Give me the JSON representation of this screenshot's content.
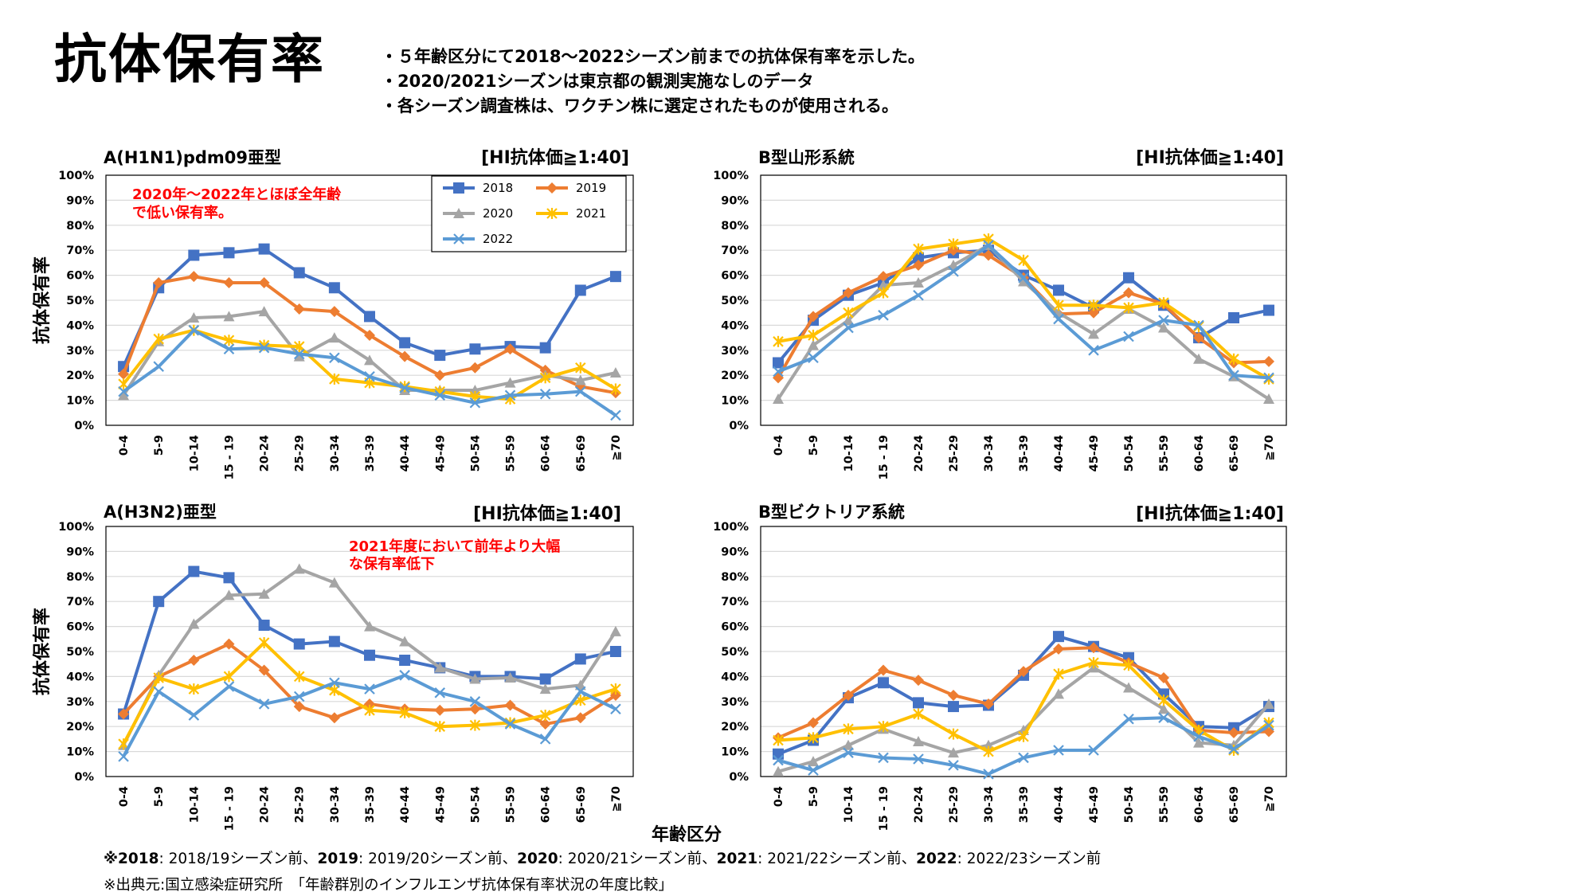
{
  "page": {
    "title": "抗体保有率",
    "notes": [
      "・５年齢区分にて2018～2022シーズン前までの抗体保有率を示した。",
      "・2020/2021シーズンは東京都の観測実施なしのデータ",
      "・各シーズン調査株は、ワクチン株に選定されたものが使用される。"
    ],
    "x_axis_title": "年齢区分",
    "footnote1": [
      {
        "b": "※2018",
        "t": ": 2018/19シーズン前、"
      },
      {
        "b": "2019",
        "t": ": 2019/20シーズン前、"
      },
      {
        "b": "2020",
        "t": ": 2020/21シーズン前、"
      },
      {
        "b": "2021",
        "t": ": 2021/22シーズン前、"
      },
      {
        "b": "2022",
        "t": ": 2022/23シーズン前"
      }
    ],
    "footnote2": "※出典元:国立感染症研究所　「年齢群別のインフルエンザ抗体保有率状況の年度比較」"
  },
  "colors": {
    "2018": "#4472C4",
    "2019": "#ED7D31",
    "2020": "#A5A5A5",
    "2021": "#FFC000",
    "2022": "#5B9BD5",
    "annotation": "#FF0000",
    "grid": "#D9D9D9"
  },
  "chart_data": [
    {
      "type": "line",
      "title": "A(H1N1)pdm09亜型",
      "criterion": "[HI抗体価≧1:40]",
      "ylabel": "抗体保有率",
      "ylim": [
        0,
        100
      ],
      "y_ticks": [
        "0%",
        "10%",
        "20%",
        "30%",
        "40%",
        "50%",
        "60%",
        "70%",
        "80%",
        "90%",
        "100%"
      ],
      "categories": [
        "0-4",
        "5-9",
        "10-14",
        "15 - 19",
        "20-24",
        "25-29",
        "30-34",
        "35-39",
        "40-44",
        "45-49",
        "50-54",
        "55-59",
        "60-64",
        "65-69",
        "≧70"
      ],
      "legend": "top-right",
      "annotation": [
        "2020年～2022年とほぼ全年齢",
        "で低い保有率。"
      ],
      "series": [
        {
          "name": "2018",
          "marker": "square",
          "values": [
            23.5,
            55,
            68,
            69,
            70.5,
            61,
            55,
            43.5,
            33,
            28,
            30.5,
            31.5,
            31,
            54,
            59.5
          ]
        },
        {
          "name": "2019",
          "marker": "diamond",
          "values": [
            20.5,
            57,
            59.5,
            57,
            57,
            46.5,
            45.5,
            36,
            27.5,
            20,
            23,
            30.5,
            22,
            15.5,
            13
          ]
        },
        {
          "name": "2020",
          "marker": "triangle",
          "values": [
            12,
            33.5,
            43,
            43.5,
            45.5,
            27.5,
            35,
            26,
            14,
            14,
            14,
            17,
            20,
            18,
            21
          ]
        },
        {
          "name": "2021",
          "marker": "star",
          "values": [
            16.5,
            34.5,
            38,
            34,
            32,
            31.5,
            18.5,
            17,
            15.5,
            13.5,
            11.5,
            10.5,
            19,
            23,
            14.5
          ]
        },
        {
          "name": "2022",
          "marker": "x",
          "values": [
            13.5,
            23.5,
            38,
            30.5,
            31,
            28.5,
            27,
            19.5,
            15,
            12,
            9,
            12,
            12.5,
            13.5,
            4
          ]
        }
      ]
    },
    {
      "type": "line",
      "title": "B型山形系統",
      "criterion": "[HI抗体価≧1:40]",
      "ylim": [
        0,
        100
      ],
      "y_ticks": [
        "0%",
        "10%",
        "20%",
        "30%",
        "40%",
        "50%",
        "60%",
        "70%",
        "80%",
        "90%",
        "100%"
      ],
      "categories": [
        "0-4",
        "5-9",
        "10-14",
        "15 - 19",
        "20-24",
        "25-29",
        "30-34",
        "35-39",
        "40-44",
        "45-49",
        "50-54",
        "55-59",
        "60-64",
        "65-69",
        "≧70"
      ],
      "series": [
        {
          "name": "2018",
          "marker": "square",
          "values": [
            25,
            42,
            52,
            57,
            67,
            69,
            70,
            60,
            54,
            47,
            59,
            48,
            35,
            43,
            46
          ]
        },
        {
          "name": "2019",
          "marker": "diamond",
          "values": [
            19,
            43.5,
            53,
            59.5,
            64,
            70,
            68,
            59,
            44.5,
            45,
            53,
            48.5,
            35,
            25,
            25.5
          ]
        },
        {
          "name": "2020",
          "marker": "triangle",
          "values": [
            10.5,
            32,
            42,
            56,
            57,
            64,
            72,
            57.5,
            45,
            36.5,
            46.5,
            39,
            26.5,
            19.5,
            10.5
          ]
        },
        {
          "name": "2021",
          "marker": "star",
          "values": [
            33.5,
            36,
            45,
            53,
            70.5,
            72.5,
            74.5,
            66,
            48,
            48,
            47,
            49,
            39.5,
            26.5,
            18.5
          ]
        },
        {
          "name": "2022",
          "marker": "x",
          "values": [
            21.5,
            27,
            39,
            44,
            52,
            61.5,
            72,
            59,
            42.5,
            30,
            35.5,
            42,
            40,
            20,
            19
          ]
        }
      ]
    },
    {
      "type": "line",
      "title": "A(H3N2)亜型",
      "criterion": "[HI抗体価≧1:40]",
      "ylabel": "抗体保有率",
      "ylim": [
        0,
        100
      ],
      "y_ticks": [
        "0%",
        "10%",
        "20%",
        "30%",
        "40%",
        "50%",
        "60%",
        "70%",
        "80%",
        "90%",
        "100%"
      ],
      "categories": [
        "0-4",
        "5-9",
        "10-14",
        "15 - 19",
        "20-24",
        "25-29",
        "30-34",
        "35-39",
        "40-44",
        "45-49",
        "50-54",
        "55-59",
        "60-64",
        "65-69",
        "≧70"
      ],
      "annotation": [
        "2021年度において前年より大幅",
        "な保有率低下"
      ],
      "series": [
        {
          "name": "2018",
          "marker": "square",
          "values": [
            25,
            70,
            82,
            79.5,
            60.5,
            53,
            54,
            48.5,
            46.5,
            43.5,
            40,
            40,
            39,
            47,
            50
          ]
        },
        {
          "name": "2019",
          "marker": "diamond",
          "values": [
            25,
            40,
            46.5,
            53,
            42.5,
            28,
            23.5,
            29,
            27,
            26.5,
            27,
            28.5,
            21,
            23.5,
            32.5
          ]
        },
        {
          "name": "2020",
          "marker": "triangle",
          "values": [
            12.5,
            40.5,
            61,
            72.5,
            73,
            83,
            77.5,
            60,
            54,
            43.5,
            39,
            39.5,
            35,
            36.5,
            58
          ]
        },
        {
          "name": "2021",
          "marker": "star",
          "values": [
            13,
            39.5,
            35,
            40,
            53.5,
            40,
            34.5,
            26.5,
            25.5,
            20,
            20.5,
            21.5,
            24.5,
            30.5,
            35
          ]
        },
        {
          "name": "2022",
          "marker": "x",
          "values": [
            8,
            34,
            24.5,
            36,
            29,
            32,
            37.5,
            35,
            40.5,
            33.5,
            30,
            21,
            15,
            34,
            27
          ]
        }
      ]
    },
    {
      "type": "line",
      "title": "B型ビクトリア系統",
      "criterion": "[HI抗体価≧1:40]",
      "ylim": [
        0,
        100
      ],
      "y_ticks": [
        "0%",
        "10%",
        "20%",
        "30%",
        "40%",
        "50%",
        "60%",
        "70%",
        "80%",
        "90%",
        "100%"
      ],
      "categories": [
        "0-4",
        "5-9",
        "10-14",
        "15 - 19",
        "20-24",
        "25-29",
        "30-34",
        "35-39",
        "40-44",
        "45-49",
        "50-54",
        "55-59",
        "60-64",
        "65-69",
        "≧70"
      ],
      "series": [
        {
          "name": "2018",
          "marker": "square",
          "values": [
            9,
            14.5,
            31.5,
            37.5,
            29.5,
            28,
            28.5,
            40.5,
            56,
            52,
            47.5,
            33,
            20,
            19.5,
            28
          ]
        },
        {
          "name": "2019",
          "marker": "diamond",
          "values": [
            15.5,
            21.5,
            32.5,
            42.5,
            38.5,
            32.5,
            29,
            42,
            51,
            51.5,
            45.5,
            39.5,
            18.5,
            17.5,
            18
          ]
        },
        {
          "name": "2020",
          "marker": "triangle",
          "values": [
            2,
            6,
            12.5,
            19,
            14,
            9.5,
            12.5,
            18.5,
            33,
            43.5,
            35.5,
            27,
            13.5,
            12.5,
            29
          ]
        },
        {
          "name": "2021",
          "marker": "star",
          "values": [
            14.5,
            15.5,
            19,
            20,
            25,
            17,
            10,
            16,
            41,
            45.5,
            44.5,
            30.5,
            18.5,
            10.5,
            21.5
          ]
        },
        {
          "name": "2022",
          "marker": "x",
          "values": [
            6.5,
            2.5,
            9.5,
            7.5,
            7,
            4.5,
            1,
            7.5,
            10.5,
            10.5,
            23,
            23.5,
            16,
            11,
            20.5
          ]
        }
      ]
    }
  ]
}
